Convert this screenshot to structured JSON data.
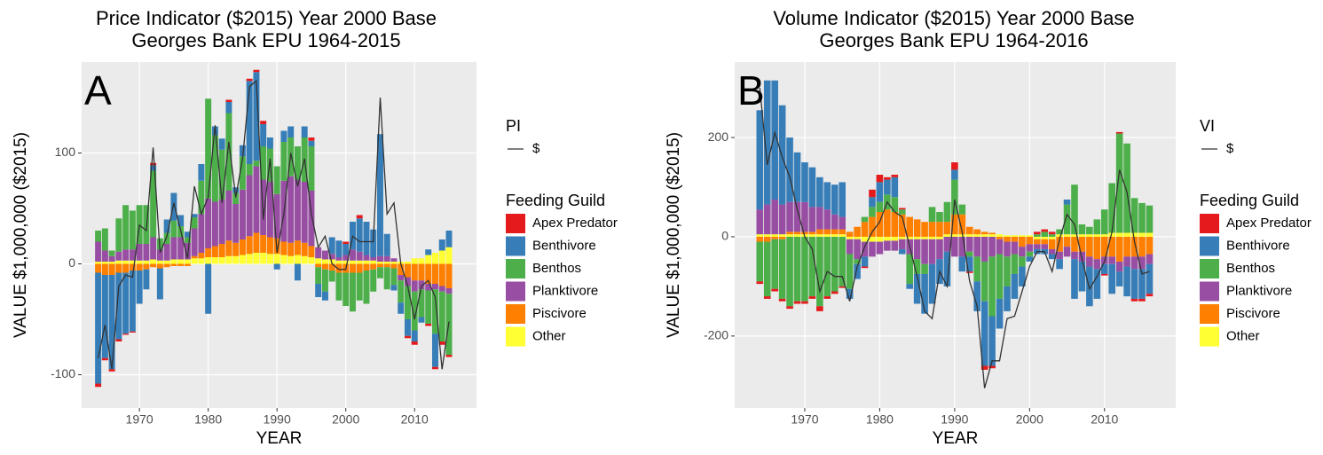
{
  "chart_data": [
    {
      "type": "bar",
      "stacked": true,
      "title": "Price Indicator ($2015) Year 2000 Base",
      "subtitle": "Georges Bank EPU 1964-2015",
      "panel_label": "A",
      "x_label": "YEAR",
      "y_label": "VALUE $1,000,000 ($2015)",
      "x": [
        1964,
        1965,
        1966,
        1967,
        1968,
        1969,
        1970,
        1971,
        1972,
        1973,
        1974,
        1975,
        1976,
        1977,
        1978,
        1979,
        1980,
        1981,
        1982,
        1983,
        1984,
        1985,
        1986,
        1987,
        1988,
        1989,
        1990,
        1991,
        1992,
        1993,
        1994,
        1995,
        1996,
        1997,
        1998,
        1999,
        2000,
        2001,
        2002,
        2003,
        2004,
        2005,
        2006,
        2007,
        2008,
        2009,
        2010,
        2011,
        2012,
        2013,
        2014,
        2015
      ],
      "xlim": [
        1961.6,
        2019
      ],
      "xticks": [
        1970,
        1980,
        1990,
        2000,
        2010
      ],
      "ylim": [
        -130,
        182
      ],
      "yticks": [
        -100,
        0,
        100
      ],
      "grid": true,
      "legend_title": "Feeding Guild",
      "series": [
        {
          "name": "Apex Predator",
          "color": "#e41a1c",
          "values": [
            -3,
            -2,
            -2,
            -2,
            -1,
            -1,
            0,
            0,
            2,
            0,
            0,
            0,
            0,
            0,
            0,
            0,
            0,
            0,
            0,
            2,
            0,
            0,
            2,
            2,
            3,
            0,
            0,
            0,
            0,
            0,
            0,
            3,
            0,
            0,
            0,
            0,
            2,
            0,
            3,
            0,
            0,
            0,
            0,
            0,
            0,
            -2,
            -3,
            0,
            -2,
            -2,
            -3,
            -2
          ]
        },
        {
          "name": "Benthivore",
          "color": "#377eb8",
          "values": [
            -100,
            -75,
            -85,
            -60,
            -55,
            -55,
            -30,
            -18,
            5,
            -28,
            12,
            25,
            10,
            5,
            3,
            15,
            -45,
            8,
            10,
            10,
            5,
            10,
            75,
            80,
            20,
            10,
            -5,
            10,
            10,
            -15,
            10,
            5,
            -12,
            -8,
            15,
            15,
            10,
            25,
            30,
            30,
            25,
            110,
            20,
            -5,
            -10,
            -15,
            -10,
            -5,
            5,
            -30,
            10,
            15
          ]
        },
        {
          "name": "Benthos",
          "color": "#4daf4a",
          "values": [
            10,
            20,
            5,
            30,
            40,
            35,
            35,
            35,
            60,
            10,
            10,
            15,
            10,
            5,
            10,
            30,
            90,
            60,
            45,
            70,
            10,
            30,
            10,
            5,
            30,
            30,
            25,
            35,
            35,
            30,
            40,
            40,
            -15,
            -20,
            -10,
            -25,
            -30,
            -35,
            -25,
            -30,
            -20,
            -10,
            -20,
            -15,
            -20,
            -30,
            -35,
            -25,
            -30,
            -40,
            -45,
            -55
          ]
        },
        {
          "name": "Planktivore",
          "color": "#984ea3",
          "values": [
            18,
            10,
            5,
            8,
            10,
            10,
            15,
            15,
            20,
            10,
            15,
            20,
            20,
            15,
            25,
            35,
            45,
            40,
            40,
            45,
            35,
            45,
            55,
            60,
            50,
            50,
            40,
            55,
            60,
            55,
            55,
            50,
            10,
            8,
            5,
            3,
            5,
            10,
            8,
            5,
            3,
            5,
            5,
            3,
            -5,
            -8,
            -10,
            -8,
            -6,
            -5,
            -5,
            -5
          ]
        },
        {
          "name": "Piscivore",
          "color": "#ff7f00",
          "values": [
            -8,
            -10,
            -10,
            -8,
            -8,
            -6,
            -6,
            -5,
            -3,
            -4,
            -3,
            -2,
            -2,
            -2,
            2,
            5,
            8,
            10,
            12,
            14,
            12,
            14,
            16,
            18,
            16,
            15,
            14,
            12,
            12,
            13,
            12,
            10,
            -3,
            -5,
            -6,
            -8,
            -8,
            -8,
            -8,
            -6,
            -5,
            -3,
            -3,
            -4,
            -10,
            -12,
            -15,
            -15,
            -18,
            -18,
            -20,
            -22
          ]
        },
        {
          "name": "Other",
          "color": "#ffff33",
          "values": [
            2,
            2,
            2,
            3,
            3,
            3,
            3,
            3,
            4,
            3,
            3,
            4,
            4,
            4,
            5,
            5,
            6,
            6,
            6,
            7,
            7,
            8,
            9,
            10,
            10,
            9,
            9,
            8,
            7,
            8,
            7,
            6,
            5,
            4,
            4,
            3,
            3,
            3,
            3,
            3,
            3,
            2,
            2,
            2,
            2,
            2,
            5,
            5,
            8,
            10,
            12,
            15
          ]
        }
      ],
      "line_legend_title": "PI",
      "line": {
        "type": "line",
        "name": "$",
        "color": "#333333",
        "values": [
          -85,
          -55,
          -95,
          -20,
          -10,
          -12,
          35,
          30,
          105,
          10,
          25,
          55,
          30,
          5,
          70,
          45,
          60,
          125,
          55,
          110,
          60,
          95,
          160,
          165,
          40,
          95,
          10,
          45,
          100,
          70,
          95,
          45,
          15,
          25,
          0,
          -5,
          -5,
          25,
          20,
          20,
          20,
          150,
          45,
          55,
          0,
          -20,
          -50,
          -20,
          -15,
          -30,
          -95,
          -52
        ]
      }
    },
    {
      "type": "bar",
      "stacked": true,
      "title": "Volume Indicator ($2015) Year 2000 Base",
      "subtitle": "Georges Bank EPU 1964-2016",
      "panel_label": "B",
      "x_label": "YEAR",
      "y_label": "VALUE $1,000,000 ($2015)",
      "x": [
        1964,
        1965,
        1966,
        1967,
        1968,
        1969,
        1970,
        1971,
        1972,
        1973,
        1974,
        1975,
        1976,
        1977,
        1978,
        1979,
        1980,
        1981,
        1982,
        1983,
        1984,
        1985,
        1986,
        1987,
        1988,
        1989,
        1990,
        1991,
        1992,
        1993,
        1994,
        1995,
        1996,
        1997,
        1998,
        1999,
        2000,
        2001,
        2002,
        2003,
        2004,
        2005,
        2006,
        2007,
        2008,
        2009,
        2010,
        2011,
        2012,
        2013,
        2014,
        2015,
        2016
      ],
      "xlim": [
        1960.65,
        2019.5
      ],
      "xticks": [
        1970,
        1980,
        1990,
        2000,
        2010
      ],
      "ylim": [
        -345,
        352
      ],
      "yticks": [
        -200,
        0,
        200
      ],
      "grid": true,
      "legend_title": "Feeding Guild",
      "series": [
        {
          "name": "Apex Predator",
          "color": "#e41a1c",
          "values": [
            -5,
            -5,
            -5,
            -5,
            -5,
            -5,
            -5,
            -5,
            -10,
            -5,
            -5,
            -3,
            0,
            0,
            -3,
            15,
            15,
            5,
            5,
            3,
            0,
            0,
            0,
            0,
            0,
            0,
            15,
            0,
            -3,
            0,
            -8,
            -5,
            0,
            0,
            0,
            0,
            0,
            5,
            5,
            5,
            0,
            0,
            0,
            0,
            0,
            0,
            -3,
            0,
            3,
            0,
            -5,
            -5,
            -5
          ]
        },
        {
          "name": "Benthivore",
          "color": "#377eb8",
          "values": [
            200,
            250,
            240,
            200,
            130,
            100,
            80,
            80,
            60,
            55,
            60,
            70,
            -20,
            -30,
            -20,
            20,
            40,
            30,
            40,
            -10,
            -10,
            -60,
            -80,
            -80,
            -50,
            -70,
            20,
            -30,
            -30,
            -60,
            -130,
            -100,
            -60,
            -50,
            -50,
            -40,
            -10,
            -10,
            -10,
            -10,
            -20,
            10,
            -80,
            -60,
            -80,
            -60,
            -20,
            -60,
            -30,
            -60,
            -60,
            -60,
            -60
          ]
        },
        {
          "name": "Benthos",
          "color": "#4daf4a",
          "values": [
            -80,
            -110,
            -100,
            -120,
            -140,
            -130,
            -130,
            -120,
            -140,
            -120,
            -110,
            -100,
            -70,
            -10,
            10,
            20,
            20,
            30,
            30,
            10,
            -60,
            -30,
            -20,
            30,
            20,
            40,
            70,
            20,
            -10,
            -50,
            -80,
            -120,
            -90,
            -60,
            -40,
            -20,
            -10,
            5,
            10,
            5,
            10,
            60,
            100,
            20,
            15,
            30,
            50,
            100,
            200,
            180,
            70,
            60,
            55
          ]
        },
        {
          "name": "Planktivore",
          "color": "#984ea3",
          "values": [
            50,
            60,
            70,
            60,
            60,
            60,
            60,
            50,
            45,
            40,
            30,
            25,
            -30,
            -40,
            -30,
            -30,
            -25,
            -20,
            -20,
            -20,
            -30,
            -40,
            -50,
            -50,
            -40,
            -30,
            -40,
            -40,
            -30,
            -40,
            -50,
            -40,
            -30,
            -30,
            -25,
            -20,
            -15,
            -10,
            -10,
            -10,
            -15,
            -20,
            -15,
            -20,
            -20,
            -20,
            -15,
            -15,
            -20,
            -20,
            -25,
            -25,
            -20
          ]
        },
        {
          "name": "Piscivore",
          "color": "#ff7f00",
          "values": [
            -10,
            -10,
            -5,
            -5,
            5,
            5,
            5,
            5,
            10,
            10,
            10,
            10,
            10,
            20,
            30,
            40,
            50,
            55,
            50,
            45,
            40,
            35,
            30,
            30,
            30,
            25,
            40,
            40,
            15,
            10,
            5,
            3,
            -5,
            -10,
            -10,
            -20,
            -15,
            -10,
            -10,
            -20,
            -30,
            -20,
            -30,
            -30,
            -40,
            -45,
            -40,
            -40,
            -50,
            -40,
            -40,
            -40,
            -35
          ]
        },
        {
          "name": "Other",
          "color": "#ffff33",
          "values": [
            5,
            5,
            5,
            5,
            5,
            5,
            5,
            5,
            5,
            5,
            5,
            5,
            -5,
            -5,
            -10,
            -10,
            -10,
            -8,
            -8,
            -5,
            -5,
            -5,
            -5,
            -5,
            -5,
            5,
            5,
            5,
            5,
            5,
            5,
            5,
            5,
            3,
            3,
            3,
            3,
            -5,
            -5,
            -5,
            5,
            5,
            5,
            5,
            5,
            5,
            5,
            8,
            8,
            8,
            8,
            8,
            8
          ]
        }
      ],
      "line_legend_title": "VI",
      "line": {
        "type": "line",
        "name": "$",
        "color": "#333333",
        "values": [
          300,
          145,
          210,
          160,
          120,
          55,
          0,
          -25,
          -110,
          -70,
          -80,
          -80,
          -130,
          -60,
          -20,
          10,
          30,
          70,
          50,
          40,
          -20,
          -80,
          -150,
          -165,
          -70,
          -100,
          75,
          10,
          -90,
          -140,
          -305,
          -250,
          -250,
          -165,
          -160,
          -110,
          -60,
          -30,
          -30,
          -70,
          -5,
          45,
          25,
          -45,
          -105,
          -80,
          -50,
          10,
          135,
          90,
          -10,
          -75,
          -70
        ]
      }
    }
  ]
}
